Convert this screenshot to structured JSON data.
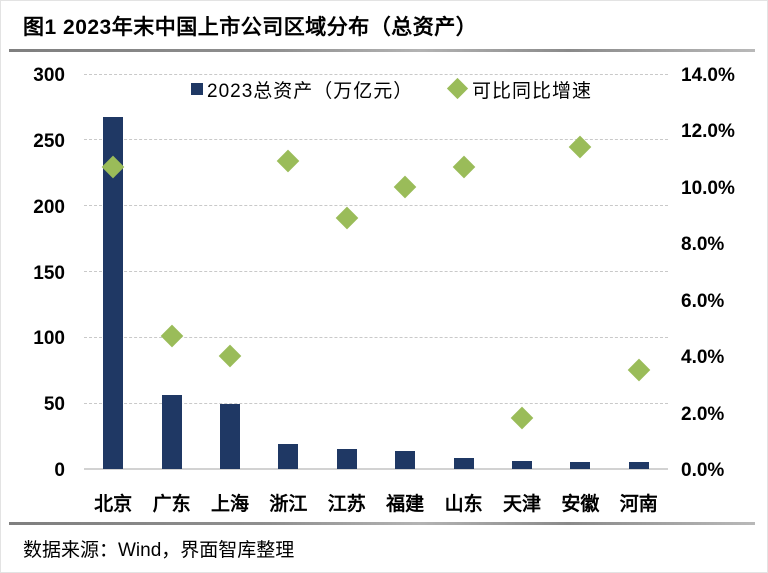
{
  "page": {
    "title": "图1 2023年末中国上市公司区域分布（总资产）",
    "source_note": "数据来源：Wind，界面智库整理"
  },
  "colors": {
    "bar": "#1f3864",
    "marker": "#9abc59",
    "gridline": "#c9c9c9",
    "axis_line": "#d2d2d2",
    "divider_gray": "#8f8f8f"
  },
  "chart_data": {
    "type": "bar",
    "subtype": "combo-bar-with-diamond-scatter-dual-axis",
    "title": "图1 2023年末中国上市公司区域分布（总资产）",
    "categories": [
      "北京",
      "广东",
      "上海",
      "浙江",
      "江苏",
      "福建",
      "山东",
      "天津",
      "安徽",
      "河南"
    ],
    "series": [
      {
        "name": "2023总资产（万亿元）",
        "type": "bar",
        "axis": "left",
        "values": [
          267,
          56,
          49,
          19,
          15,
          14,
          8,
          6,
          5,
          5
        ]
      },
      {
        "name": "可比同比增速",
        "type": "scatter-diamond",
        "axis": "right",
        "values": [
          10.7,
          4.7,
          4.0,
          10.9,
          8.9,
          10.0,
          10.7,
          1.8,
          11.4,
          3.5
        ],
        "unit": "%"
      }
    ],
    "left_axis": {
      "min": 0,
      "max": 300,
      "tick_labels": [
        "300",
        "250",
        "200",
        "150",
        "100",
        "50",
        "0"
      ],
      "tick_values": [
        300,
        250,
        200,
        150,
        100,
        50,
        0
      ]
    },
    "right_axis": {
      "min": 0,
      "max": 14,
      "tick_labels": [
        "14.0%",
        "12.0%",
        "10.0%",
        "8.0%",
        "6.0%",
        "4.0%",
        "2.0%",
        "0.0%"
      ]
    },
    "grid": "horizontal-dashed",
    "legend_position": "top-center",
    "legend": [
      "2023总资产（万亿元）",
      "可比同比增速"
    ]
  }
}
